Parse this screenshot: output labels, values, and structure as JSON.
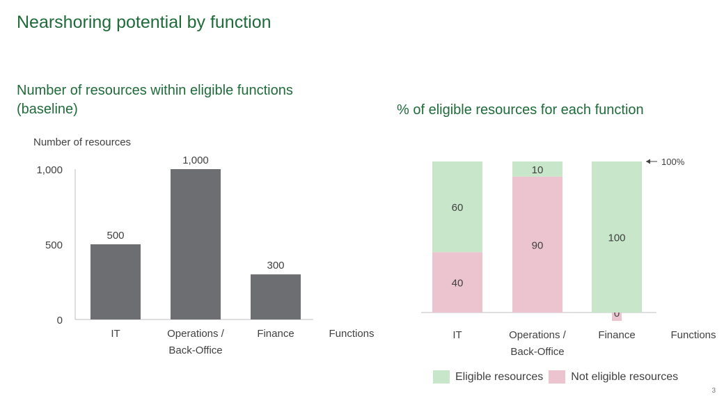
{
  "title": "Nearshoring potential by function",
  "page_number": "3",
  "colors": {
    "title": "#1f6b3a",
    "bar_gray": "#6d6e71",
    "eligible": "#c8e6c9",
    "not_eligible": "#ecc4d0"
  },
  "chart_data": [
    {
      "type": "bar",
      "title": "Number of resources within eligible functions (baseline)",
      "ylabel": "Number of resources",
      "xlabel": "Functions",
      "categories": [
        "IT",
        "Operations / Back-Office",
        "Finance"
      ],
      "category_lines": [
        [
          "IT"
        ],
        [
          "Operations /",
          "Back-Office"
        ],
        [
          "Finance"
        ]
      ],
      "values": [
        500,
        1000,
        300
      ],
      "value_labels": [
        "500",
        "1,000",
        "300"
      ],
      "ylim": [
        0,
        1000
      ],
      "yticks": [
        0,
        500,
        1000
      ],
      "ytick_labels": [
        "0",
        "500",
        "1,000"
      ],
      "grid": false
    },
    {
      "type": "bar",
      "stacked": true,
      "title": "% of eligible resources for each function",
      "xlabel": "Functions",
      "categories": [
        "IT",
        "Operations / Back-Office",
        "Finance"
      ],
      "category_lines": [
        [
          "IT"
        ],
        [
          "Operations /",
          "Back-Office"
        ],
        [
          "Finance"
        ]
      ],
      "series": [
        {
          "name": "Not eligible resources",
          "values": [
            40,
            90,
            0
          ],
          "labels": [
            "40",
            "90",
            "0"
          ]
        },
        {
          "name": "Eligible resources",
          "values": [
            60,
            10,
            100
          ],
          "labels": [
            "60",
            "10",
            "100"
          ]
        }
      ],
      "ylim": [
        0,
        100
      ],
      "annotation": "100%",
      "legend": "bottom"
    }
  ]
}
